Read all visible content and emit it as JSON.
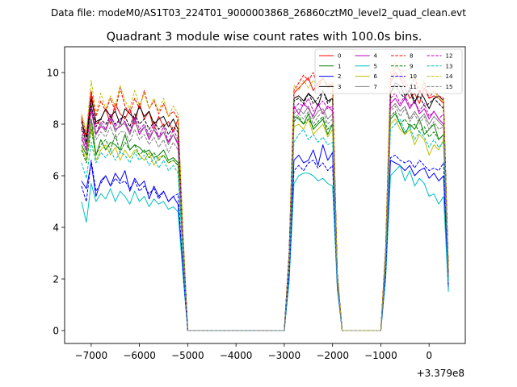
{
  "chart_data": {
    "type": "line",
    "suptitle": "Data file: modeM0/AS1T03_224T01_9000003868_26860cztM0_level2_quad_clean.evt",
    "title": "Quadrant 3 module wise count rates with 100.0s bins.",
    "xlabel": "",
    "ylabel": "",
    "x_offset_label": "+3.379e8",
    "xlim": [
      -7550,
      750
    ],
    "ylim": [
      -0.5,
      11
    ],
    "x_ticks": [
      -7000,
      -6000,
      -5000,
      -4000,
      -3000,
      -2000,
      -1000,
      0
    ],
    "x_tick_labels": [
      "−7000",
      "−6000",
      "−5000",
      "−4000",
      "−3000",
      "−2000",
      "−1000",
      "0"
    ],
    "y_ticks": [
      0,
      2,
      4,
      6,
      8,
      10
    ],
    "y_tick_labels": [
      "0",
      "2",
      "4",
      "6",
      "8",
      "10"
    ],
    "legend_position": "upper right",
    "x_segments": [
      [
        -7200,
        -7100,
        -7000,
        -6900,
        -6800,
        -6700,
        -6600,
        -6500,
        -6400,
        -6300,
        -6200,
        -6100,
        -6000,
        -5900,
        -5800,
        -5700,
        -5600,
        -5500,
        -5400,
        -5300,
        -5200,
        -5100
      ],
      [
        -5000,
        -3000
      ],
      [
        -2900,
        -2800,
        -2700,
        -2600,
        -2500,
        -2400,
        -2300,
        -2200,
        -2100,
        -2000,
        -1900
      ],
      [
        -1800,
        -1000
      ],
      [
        -900,
        -800,
        -700,
        -600,
        -500,
        -400,
        -300,
        -200,
        -100,
        0,
        100,
        200,
        300,
        400
      ]
    ],
    "series": [
      {
        "name": "0",
        "color": "#ff0000",
        "dash": "solid",
        "segments": [
          [
            8.2,
            7.2,
            9.2,
            8.0,
            8.2,
            8.6,
            8.0,
            8.8,
            8.4,
            8.2,
            8.6,
            8.0,
            8.8,
            8.2,
            8.5,
            7.8,
            8.3,
            7.9,
            8.1,
            7.7,
            8.2,
            3.8
          ],
          [
            0,
            0
          ],
          [
            3.0,
            9.2,
            9.4,
            9.6,
            9.8,
            9.3,
            9.6,
            9.8,
            9.4,
            9.5,
            2.1
          ],
          [
            0,
            0
          ],
          [
            3.2,
            9.6,
            10.0,
            9.8,
            9.4,
            9.0,
            9.2,
            8.8,
            9.4,
            9.0,
            9.1,
            9.0,
            8.8,
            2.4
          ]
        ]
      },
      {
        "name": "1",
        "color": "#008000",
        "dash": "solid",
        "segments": [
          [
            7.2,
            6.8,
            8.2,
            6.8,
            7.4,
            7.0,
            7.3,
            7.2,
            7.0,
            7.6,
            7.0,
            7.2,
            7.1,
            6.9,
            7.0,
            6.7,
            6.8,
            7.0,
            6.6,
            6.7,
            6.5,
            3.2
          ],
          [
            0,
            0
          ],
          [
            2.6,
            8.3,
            8.2,
            8.0,
            8.4,
            7.8,
            8.0,
            8.2,
            7.6,
            8.0,
            1.9
          ],
          [
            0,
            0
          ],
          [
            2.8,
            8.2,
            8.4,
            8.0,
            7.6,
            8.0,
            7.8,
            8.2,
            7.6,
            7.8,
            8.0,
            7.4,
            7.6,
            2.1
          ]
        ]
      },
      {
        "name": "2",
        "color": "#0000ff",
        "dash": "solid",
        "segments": [
          [
            5.8,
            5.5,
            6.5,
            5.2,
            5.8,
            6.0,
            5.6,
            6.1,
            5.8,
            6.2,
            5.4,
            5.9,
            5.6,
            5.8,
            5.1,
            5.6,
            5.2,
            5.4,
            5.0,
            5.2,
            4.9,
            2.4
          ],
          [
            0,
            0
          ],
          [
            2.1,
            6.6,
            6.8,
            6.5,
            6.6,
            7.0,
            6.4,
            7.2,
            6.6,
            6.9,
            1.7
          ],
          [
            0,
            0
          ],
          [
            2.2,
            6.6,
            6.5,
            6.4,
            6.2,
            6.4,
            6.0,
            6.2,
            6.3,
            5.9,
            6.1,
            5.8,
            6.0,
            1.6
          ]
        ]
      },
      {
        "name": "3",
        "color": "#000000",
        "dash": "solid",
        "segments": [
          [
            8.1,
            7.5,
            9.0,
            8.1,
            8.2,
            8.6,
            8.3,
            8.5,
            8.0,
            8.6,
            8.4,
            8.2,
            8.7,
            8.3,
            8.5,
            8.0,
            8.2,
            8.3,
            7.9,
            8.2,
            7.8,
            3.6
          ],
          [
            0,
            0
          ],
          [
            2.9,
            9.0,
            9.1,
            8.9,
            9.2,
            9.0,
            8.7,
            9.3,
            8.9,
            9.0,
            2.2
          ],
          [
            0,
            0
          ],
          [
            3.0,
            9.2,
            9.6,
            9.5,
            9.1,
            9.3,
            8.8,
            9.3,
            9.0,
            8.6,
            9.0,
            9.1,
            8.9,
            2.3
          ]
        ]
      },
      {
        "name": "4",
        "color": "#bf00bf",
        "dash": "solid",
        "segments": [
          [
            7.5,
            7.0,
            8.8,
            7.6,
            7.9,
            7.8,
            8.2,
            7.8,
            7.9,
            8.1,
            7.6,
            8.2,
            7.6,
            7.9,
            7.4,
            7.8,
            7.5,
            7.7,
            7.3,
            7.6,
            7.2,
            3.4
          ],
          [
            0,
            0
          ],
          [
            2.7,
            8.7,
            8.4,
            8.8,
            8.6,
            8.3,
            8.8,
            8.4,
            8.7,
            8.5,
            2.0
          ],
          [
            0,
            0
          ],
          [
            2.9,
            8.8,
            9.0,
            8.7,
            9.0,
            8.6,
            8.9,
            8.4,
            8.6,
            8.2,
            8.5,
            8.2,
            8.0,
            2.2
          ]
        ]
      },
      {
        "name": "5",
        "color": "#00bfbf",
        "dash": "solid",
        "segments": [
          [
            5.0,
            4.2,
            5.7,
            5.0,
            5.3,
            5.1,
            5.5,
            5.0,
            5.4,
            5.2,
            4.9,
            5.4,
            5.0,
            5.2,
            4.8,
            5.1,
            4.9,
            5.0,
            4.7,
            4.8,
            4.6,
            2.2
          ],
          [
            0,
            0
          ],
          [
            1.9,
            5.7,
            6.0,
            6.1,
            6.1,
            6.0,
            5.8,
            5.9,
            5.7,
            5.6,
            1.6
          ],
          [
            0,
            0
          ],
          [
            2.0,
            6.0,
            6.2,
            6.4,
            5.8,
            6.2,
            5.6,
            5.9,
            5.7,
            5.2,
            5.3,
            4.9,
            5.2,
            1.5
          ]
        ]
      },
      {
        "name": "6",
        "color": "#bfbf00",
        "dash": "solid",
        "segments": [
          [
            7.1,
            6.6,
            8.0,
            6.6,
            7.0,
            7.2,
            6.8,
            7.1,
            6.6,
            7.0,
            6.7,
            7.0,
            6.8,
            6.6,
            6.9,
            6.4,
            6.7,
            6.8,
            6.5,
            6.6,
            6.4,
            3.1
          ],
          [
            0,
            0
          ],
          [
            2.5,
            7.9,
            8.0,
            7.8,
            8.2,
            7.6,
            7.8,
            8.0,
            7.5,
            7.8,
            1.9
          ],
          [
            0,
            0
          ],
          [
            2.7,
            8.0,
            8.2,
            7.8,
            7.6,
            7.8,
            7.2,
            7.6,
            7.4,
            6.8,
            7.2,
            7.0,
            7.4,
            2.0
          ]
        ]
      },
      {
        "name": "7",
        "color": "#808080",
        "dash": "solid",
        "segments": [
          [
            7.6,
            7.2,
            8.5,
            7.6,
            8.0,
            7.7,
            8.3,
            7.7,
            8.0,
            8.0,
            7.6,
            8.1,
            7.7,
            7.9,
            7.5,
            7.8,
            7.4,
            7.7,
            7.2,
            7.6,
            7.3,
            3.5
          ],
          [
            0,
            0
          ],
          [
            2.8,
            8.4,
            8.6,
            8.4,
            8.7,
            8.2,
            8.5,
            8.6,
            8.2,
            8.4,
            2.0
          ],
          [
            0,
            0
          ],
          [
            2.9,
            8.6,
            8.8,
            8.5,
            8.7,
            8.2,
            8.5,
            8.2,
            8.4,
            8.0,
            8.3,
            8.1,
            7.9,
            2.2
          ]
        ]
      },
      {
        "name": "8",
        "color": "#ff0000",
        "dash": "dashed",
        "segments": [
          [
            8.3,
            7.6,
            9.3,
            8.3,
            8.9,
            8.5,
            9.0,
            8.5,
            9.4,
            8.7,
            8.4,
            9.0,
            8.6,
            9.3,
            8.6,
            8.9,
            8.4,
            8.8,
            8.3,
            8.5,
            8.2,
            3.8
          ],
          [
            0,
            0
          ],
          [
            3.0,
            9.3,
            9.6,
            9.9,
            9.7,
            10.0,
            9.4,
            9.8,
            9.5,
            9.6,
            2.1
          ],
          [
            0,
            0
          ],
          [
            3.2,
            9.8,
            10.2,
            10.1,
            9.6,
            9.4,
            9.8,
            9.2,
            9.6,
            9.0,
            9.3,
            9.1,
            9.0,
            2.4
          ]
        ]
      },
      {
        "name": "9",
        "color": "#008000",
        "dash": "dashed",
        "segments": [
          [
            7.0,
            6.5,
            7.8,
            6.8,
            7.2,
            7.4,
            7.0,
            7.6,
            6.9,
            7.3,
            7.0,
            7.2,
            6.8,
            7.0,
            6.7,
            6.9,
            6.6,
            6.8,
            6.5,
            6.6,
            6.4,
            3.1
          ],
          [
            0,
            0
          ],
          [
            2.6,
            8.1,
            8.3,
            8.0,
            8.2,
            7.9,
            8.1,
            8.3,
            7.8,
            8.0,
            1.9
          ],
          [
            0,
            0
          ],
          [
            2.8,
            8.3,
            8.5,
            8.0,
            8.2,
            7.9,
            8.0,
            7.7,
            7.9,
            7.5,
            7.7,
            7.4,
            7.6,
            2.1
          ]
        ]
      },
      {
        "name": "10",
        "color": "#0000ff",
        "dash": "dashed",
        "segments": [
          [
            5.6,
            5.0,
            6.6,
            5.4,
            5.7,
            6.0,
            5.6,
            5.9,
            5.7,
            5.8,
            5.5,
            5.8,
            5.4,
            5.6,
            5.3,
            5.5,
            5.1,
            5.4,
            5.0,
            5.2,
            5.3,
            2.4
          ],
          [
            0,
            0
          ],
          [
            2.1,
            6.2,
            6.4,
            6.2,
            6.5,
            6.6,
            6.3,
            6.5,
            6.2,
            6.4,
            1.7
          ],
          [
            0,
            0
          ],
          [
            2.2,
            6.7,
            6.8,
            6.6,
            6.5,
            6.6,
            6.3,
            6.6,
            6.4,
            6.2,
            6.3,
            6.2,
            6.5,
            1.7
          ]
        ]
      },
      {
        "name": "11",
        "color": "#000000",
        "dash": "dashed",
        "segments": [
          [
            7.9,
            7.3,
            8.7,
            7.9,
            8.2,
            8.0,
            8.3,
            8.0,
            8.2,
            8.3,
            7.9,
            8.4,
            8.0,
            8.2,
            7.8,
            8.1,
            7.8,
            8.0,
            7.6,
            7.9,
            7.7,
            3.5
          ],
          [
            0,
            0
          ],
          [
            2.9,
            8.9,
            9.0,
            8.8,
            9.2,
            8.8,
            9.0,
            9.3,
            8.8,
            9.0,
            2.1
          ],
          [
            0,
            0
          ],
          [
            3.0,
            9.2,
            9.5,
            9.2,
            9.0,
            9.4,
            8.9,
            9.1,
            8.7,
            8.8,
            9.0,
            8.8,
            8.6,
            2.3
          ]
        ]
      },
      {
        "name": "12",
        "color": "#bf00bf",
        "dash": "dashed",
        "segments": [
          [
            7.8,
            7.1,
            8.6,
            7.6,
            8.1,
            7.8,
            8.4,
            7.9,
            8.2,
            8.1,
            7.7,
            8.3,
            7.8,
            8.0,
            7.6,
            8.0,
            7.5,
            7.9,
            7.3,
            7.8,
            7.4,
            3.5
          ],
          [
            0,
            0
          ],
          [
            2.8,
            8.6,
            8.8,
            8.7,
            9.0,
            8.5,
            8.7,
            8.9,
            8.6,
            8.7,
            2.0
          ],
          [
            0,
            0
          ],
          [
            2.9,
            9.0,
            9.2,
            8.8,
            9.1,
            8.7,
            8.9,
            8.5,
            8.8,
            8.3,
            8.5,
            8.2,
            8.4,
            2.2
          ]
        ]
      },
      {
        "name": "13",
        "color": "#00bfbf",
        "dash": "dashed",
        "segments": [
          [
            6.5,
            5.9,
            7.3,
            6.5,
            6.9,
            6.7,
            7.0,
            6.6,
            6.9,
            6.8,
            6.5,
            6.9,
            6.6,
            6.8,
            6.4,
            6.7,
            6.3,
            6.6,
            6.2,
            6.4,
            6.1,
            2.9
          ],
          [
            0,
            0
          ],
          [
            2.4,
            7.3,
            7.6,
            7.8,
            7.4,
            7.6,
            7.3,
            7.5,
            7.2,
            7.3,
            1.8
          ],
          [
            0,
            0
          ],
          [
            2.6,
            7.8,
            8.0,
            8.2,
            7.7,
            7.9,
            7.4,
            7.7,
            7.5,
            7.1,
            7.4,
            7.1,
            7.3,
            1.9
          ]
        ]
      },
      {
        "name": "14",
        "color": "#bfbf00",
        "dash": "dashed",
        "segments": [
          [
            8.4,
            7.7,
            9.7,
            8.4,
            9.2,
            8.6,
            9.1,
            8.7,
            9.5,
            8.9,
            8.6,
            9.3,
            8.7,
            9.2,
            8.6,
            9.0,
            8.5,
            9.0,
            8.3,
            8.7,
            8.4,
            3.9
          ],
          [
            0,
            0
          ],
          [
            3.0,
            9.5,
            9.3,
            9.7,
            9.4,
            9.7,
            9.5,
            9.8,
            9.4,
            9.6,
            2.1
          ],
          [
            0,
            0
          ],
          [
            3.2,
            10.0,
            10.4,
            10.0,
            10.1,
            9.7,
            9.9,
            9.4,
            9.7,
            9.2,
            9.3,
            9.0,
            8.9,
            2.4
          ]
        ]
      },
      {
        "name": "15",
        "color": "#808080",
        "dash": "dashed",
        "segments": [
          [
            7.4,
            6.9,
            8.2,
            7.4,
            7.7,
            7.5,
            7.9,
            7.4,
            7.7,
            7.7,
            7.3,
            7.8,
            7.4,
            7.6,
            7.2,
            7.5,
            7.1,
            7.4,
            6.9,
            7.3,
            7.0,
            3.3
          ],
          [
            0,
            0
          ],
          [
            2.7,
            8.2,
            8.4,
            8.2,
            8.5,
            8.0,
            8.3,
            8.5,
            8.0,
            8.2,
            1.9
          ],
          [
            0,
            0
          ],
          [
            2.9,
            8.5,
            8.7,
            8.3,
            8.6,
            8.1,
            8.4,
            8.0,
            8.3,
            7.8,
            8.1,
            7.8,
            7.9,
            2.1
          ]
        ]
      }
    ]
  }
}
